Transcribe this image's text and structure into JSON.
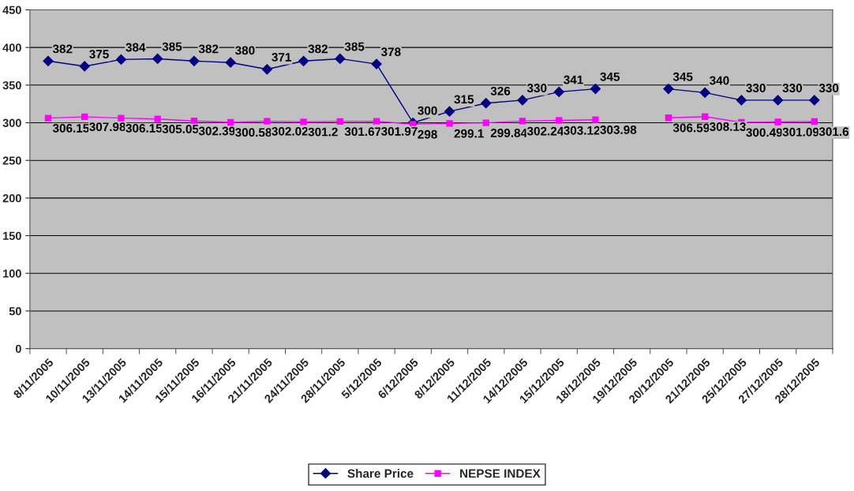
{
  "chart_data": {
    "type": "line",
    "categories": [
      "8/11/2005",
      "10/11/2005",
      "13/11/2005",
      "14/11/2005",
      "15/11/2005",
      "16/11/2005",
      "21/11/2005",
      "24/11/2005",
      "28/11/2005",
      "5/12/2005",
      "6/12/2005",
      "8/12/2005",
      "11/12/2005",
      "14/12/2005",
      "15/12/2005",
      "18/12/2005",
      "19/12/2005",
      "20/12/2005",
      "21/12/2005",
      "25/12/2005",
      "27/12/2005",
      "28/12/2005"
    ],
    "series": [
      {
        "name": "Share Price",
        "color": "#000080",
        "marker": "diamond",
        "values": [
          382,
          375,
          384,
          385,
          382,
          380,
          371,
          382,
          385,
          378,
          300,
          315,
          326,
          330,
          341,
          345,
          null,
          345,
          340,
          330,
          330,
          330
        ]
      },
      {
        "name": "NEPSE INDEX",
        "color": "#ff00ff",
        "marker": "square",
        "values": [
          306.15,
          307.98,
          306.15,
          305.05,
          302.39,
          300.58,
          302.02,
          301.2,
          301.67,
          301.97,
          298,
          299.1,
          299.84,
          302.24,
          303.12,
          303.98,
          null,
          306.59,
          308.13,
          300.49,
          301.09,
          301.6
        ]
      }
    ],
    "ylim": [
      0,
      450
    ],
    "yticks": [
      0,
      50,
      100,
      150,
      200,
      250,
      300,
      350,
      400,
      450
    ],
    "grid": "y",
    "legend": "bottom",
    "data_labels": true,
    "line_style": "solid"
  }
}
